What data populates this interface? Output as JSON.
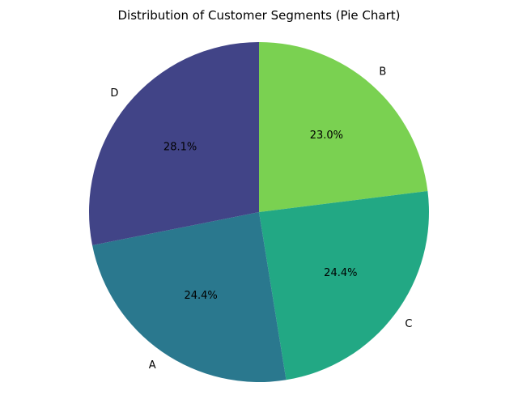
{
  "chart_data": {
    "type": "pie",
    "title": "Distribution of Customer Segments (Pie Chart)",
    "categories": [
      "B",
      "C",
      "A",
      "D"
    ],
    "values": [
      23.0,
      24.4,
      24.4,
      28.1
    ],
    "percent_labels": [
      "23.0%",
      "24.4%",
      "24.4%",
      "28.1%"
    ],
    "colors": [
      "#7ad151",
      "#22a884",
      "#2a788e",
      "#414487"
    ],
    "start_angle_deg": 90,
    "direction": "clockwise"
  }
}
